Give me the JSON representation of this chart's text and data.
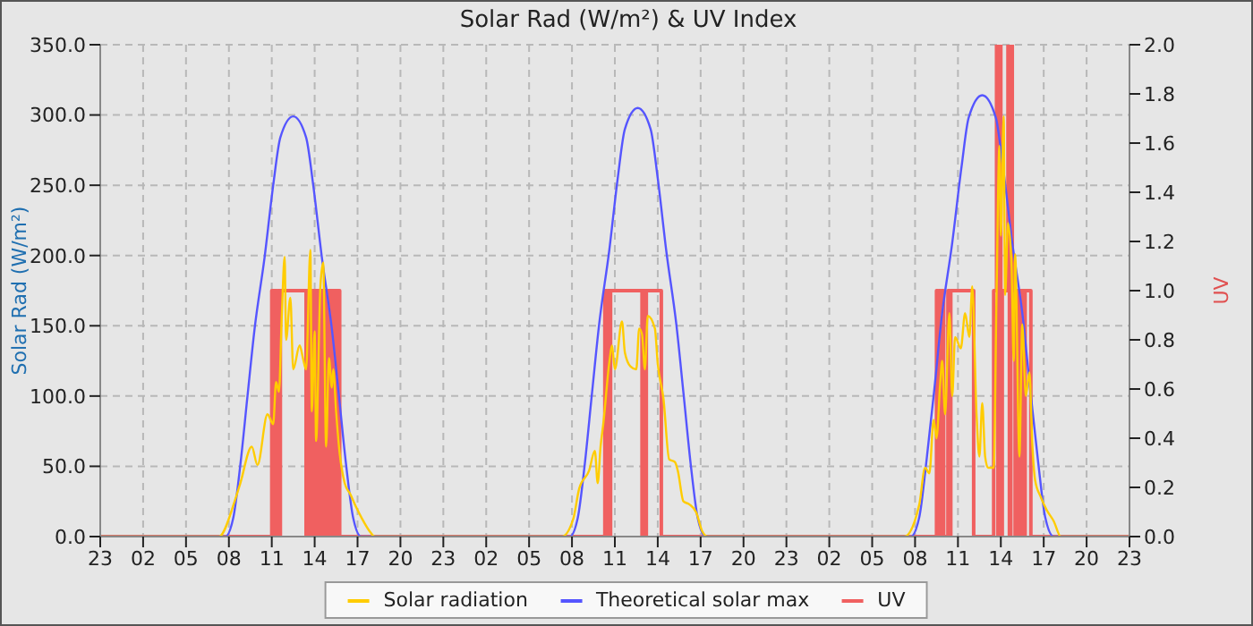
{
  "chart_data": {
    "type": "line",
    "title": "Solar Rad (W/m²) &  UV Index",
    "ylabel": "Solar Rad (W/m²)",
    "y2label": "UV",
    "xlim": [
      "--01-01T23:00",
      "--01-04T23:00"
    ],
    "xticks": [
      {
        "value": "--01-01T23:00",
        "label": "23"
      },
      {
        "value": "--01-02T02:00",
        "label": "02"
      },
      {
        "value": "--01-02T05:00",
        "label": "05"
      },
      {
        "value": "--01-02T08:00",
        "label": "08"
      },
      {
        "value": "--01-02T11:00",
        "label": "11"
      },
      {
        "value": "--01-02T14:00",
        "label": "14"
      },
      {
        "value": "--01-02T17:00",
        "label": "17"
      },
      {
        "value": "--01-02T20:00",
        "label": "20"
      },
      {
        "value": "--01-02T23:00",
        "label": "23"
      },
      {
        "value": "--01-03T02:00",
        "label": "02"
      },
      {
        "value": "--01-03T05:00",
        "label": "05"
      },
      {
        "value": "--01-03T08:00",
        "label": "08"
      },
      {
        "value": "--01-03T11:00",
        "label": "11"
      },
      {
        "value": "--01-03T14:00",
        "label": "14"
      },
      {
        "value": "--01-03T17:00",
        "label": "17"
      },
      {
        "value": "--01-03T20:00",
        "label": "20"
      },
      {
        "value": "--01-03T23:00",
        "label": "23"
      },
      {
        "value": "--01-04T02:00",
        "label": "02"
      },
      {
        "value": "--01-04T05:00",
        "label": "05"
      },
      {
        "value": "--01-04T08:00",
        "label": "08"
      },
      {
        "value": "--01-04T11:00",
        "label": "11"
      },
      {
        "value": "--01-04T14:00",
        "label": "14"
      },
      {
        "value": "--01-04T17:00",
        "label": "17"
      },
      {
        "value": "--01-04T20:00",
        "label": "20"
      },
      {
        "value": "--01-04T23:00",
        "label": "23"
      }
    ],
    "ylim": [
      0,
      350
    ],
    "yticks": [
      {
        "value": 0,
        "label": "0.0"
      },
      {
        "value": 50,
        "label": "50.0"
      },
      {
        "value": 100,
        "label": "100.0"
      },
      {
        "value": 150,
        "label": "150.0"
      },
      {
        "value": 200,
        "label": "200.0"
      },
      {
        "value": 250,
        "label": "250.0"
      },
      {
        "value": 300,
        "label": "300.0"
      },
      {
        "value": 350,
        "label": "350.0"
      }
    ],
    "y2lim": [
      0,
      2
    ],
    "y2ticks": [
      {
        "value": 0,
        "label": "0.0"
      },
      {
        "value": 0.2,
        "label": "0.2"
      },
      {
        "value": 0.4,
        "label": "0.4"
      },
      {
        "value": 0.6,
        "label": "0.6"
      },
      {
        "value": 0.8,
        "label": "0.8"
      },
      {
        "value": 1,
        "label": "1.0"
      },
      {
        "value": 1.2,
        "label": "1.2"
      },
      {
        "value": 1.4,
        "label": "1.4"
      },
      {
        "value": 1.6,
        "label": "1.6"
      },
      {
        "value": 1.8,
        "label": "1.8"
      },
      {
        "value": 2,
        "label": "2.0"
      }
    ],
    "grid": true,
    "legend": "bottom",
    "series": [
      {
        "name": "Solar radiation",
        "color": "#ffcc00",
        "x": [
          "--01-01T23:00",
          "--01-02T07:18",
          "--01-02T08:24",
          "--01-02T08:48",
          "--01-02T09:36",
          "--01-02T10:00",
          "--01-02T10:42",
          "--01-02T11:06",
          "--01-02T11:18",
          "--01-02T11:30",
          "--01-02T11:42",
          "--01-02T11:54",
          "--01-02T12:00",
          "--01-02T12:18",
          "--01-02T12:30",
          "--01-02T12:57",
          "--01-02T13:12",
          "--01-02T13:24",
          "--01-02T13:42",
          "--01-02T13:48",
          "--01-02T14:00",
          "--01-02T14:06",
          "--01-02T14:24",
          "--01-02T14:36",
          "--01-02T14:48",
          "--01-02T15:00",
          "--01-02T15:12",
          "--01-02T15:18",
          "--01-02T15:30",
          "--01-02T15:42",
          "--01-02T16:06",
          "--01-02T16:30",
          "--01-02T16:54",
          "--01-02T17:18",
          "--01-02T17:54",
          "--01-02T18:12",
          "--01-03T07:18",
          "--01-03T08:06",
          "--01-03T08:30",
          "--01-03T09:12",
          "--01-03T09:36",
          "--01-03T09:48",
          "--01-03T10:00",
          "--01-03T10:12",
          "--01-03T10:36",
          "--01-03T10:48",
          "--01-03T11:00",
          "--01-03T11:30",
          "--01-03T11:42",
          "--01-03T12:06",
          "--01-03T12:30",
          "--01-03T12:42",
          "--01-03T12:54",
          "--01-03T13:06",
          "--01-03T13:18",
          "--01-03T13:48",
          "--01-03T14:00",
          "--01-03T14:24",
          "--01-03T14:48",
          "--01-03T15:12",
          "--01-03T15:24",
          "--01-03T15:48",
          "--01-03T16:12",
          "--01-03T16:42",
          "--01-03T17:06",
          "--01-03T17:30",
          "--01-04T07:15",
          "--01-04T08:18",
          "--01-04T08:42",
          "--01-04T09:00",
          "--01-04T09:18",
          "--01-04T09:30",
          "--01-04T09:45",
          "--01-04T09:54",
          "--01-04T10:06",
          "--01-04T10:24",
          "--01-04T10:36",
          "--01-04T10:48",
          "--01-04T11:12",
          "--01-04T11:30",
          "--01-04T11:48",
          "--01-04T12:00",
          "--01-04T12:18",
          "--01-04T12:30",
          "--01-04T12:42",
          "--01-04T12:54",
          "--01-04T13:06",
          "--01-04T13:30",
          "--01-04T13:42",
          "--01-04T13:54",
          "--01-04T14:00",
          "--01-04T14:12",
          "--01-04T14:18",
          "--01-04T14:30",
          "--01-04T14:45",
          "--01-04T14:54",
          "--01-04T15:00",
          "--01-04T15:18",
          "--01-04T15:30",
          "--01-04T15:45",
          "--01-04T16:00",
          "--01-04T16:12",
          "--01-04T16:24",
          "--01-04T16:48",
          "--01-04T17:12",
          "--01-04T17:42",
          "--01-04T18:12",
          "--01-04T23:00"
        ],
        "values": [
          0,
          0,
          25,
          38,
          64,
          51,
          87,
          80,
          110,
          103,
          157,
          199,
          140,
          170,
          119,
          136,
          126,
          119,
          204,
          89,
          146,
          68,
          178,
          195,
          64,
          127,
          106,
          119,
          89,
          64,
          38,
          30,
          21,
          13,
          3,
          0,
          0,
          13,
          34,
          47,
          61,
          38,
          64,
          81,
          123,
          136,
          119,
          153,
          131,
          121,
          119,
          148,
          144,
          119,
          157,
          148,
          123,
          98,
          55,
          53,
          47,
          25,
          23,
          17,
          4,
          0,
          0,
          23,
          49,
          45,
          83,
          70,
          108,
          125,
          87,
          159,
          100,
          142,
          134,
          159,
          142,
          178,
          87,
          57,
          95,
          57,
          49,
          49,
          172,
          278,
          214,
          299,
          172,
          223,
          193,
          125,
          201,
          57,
          151,
          100,
          117,
          66,
          40,
          28,
          19,
          11,
          0,
          0
        ]
      },
      {
        "name": "Theoretical solar max",
        "color": "#5555ff",
        "x": [
          "--01-01T23:00",
          "--01-02T07:45",
          "--01-02T08:18",
          "--01-02T08:48",
          "--01-02T09:18",
          "--01-02T09:48",
          "--01-02T10:30",
          "--01-02T11:06",
          "--01-02T11:36",
          "--01-02T12:30",
          "--01-02T13:24",
          "--01-02T13:54",
          "--01-02T14:30",
          "--01-02T15:12",
          "--01-02T15:42",
          "--01-02T16:12",
          "--01-02T16:42",
          "--01-02T17:15",
          "--01-03T07:51",
          "--01-03T08:24",
          "--01-03T08:54",
          "--01-03T09:24",
          "--01-03T09:54",
          "--01-03T10:36",
          "--01-03T11:12",
          "--01-03T11:42",
          "--01-03T12:36",
          "--01-03T13:30",
          "--01-03T14:00",
          "--01-03T14:36",
          "--01-03T15:18",
          "--01-03T15:48",
          "--01-03T16:18",
          "--01-03T16:48",
          "--01-03T17:21",
          "--01-04T07:42",
          "--01-04T08:18",
          "--01-04T08:48",
          "--01-04T09:21",
          "--01-04T09:51",
          "--01-04T10:36",
          "--01-04T11:15",
          "--01-04T11:45",
          "--01-04T12:42",
          "--01-04T13:39",
          "--01-04T14:09",
          "--01-04T14:48",
          "--01-04T15:33",
          "--01-04T16:03",
          "--01-04T16:36",
          "--01-04T17:06",
          "--01-04T17:42",
          "--01-04T23:00"
        ],
        "values": [
          0,
          0,
          13,
          51,
          100,
          148,
          199,
          250,
          284,
          299,
          284,
          250,
          199,
          148,
          100,
          51,
          13,
          0,
          0,
          13,
          52,
          102,
          151,
          203,
          255,
          290,
          305,
          290,
          255,
          203,
          151,
          102,
          52,
          13,
          0,
          0,
          14,
          54,
          105,
          155,
          209,
          263,
          298,
          314,
          298,
          263,
          209,
          155,
          105,
          54,
          14,
          0,
          0
        ]
      },
      {
        "name": "UV",
        "type": "step",
        "axis": "y2",
        "color": "#f06060",
        "x": [
          "--01-01T23:00",
          "--01-02T11:00",
          "--01-02T11:06",
          "--01-02T11:12",
          "--01-02T11:18",
          "--01-02T11:24",
          "--01-02T11:30",
          "--01-02T11:36",
          "--01-02T13:24",
          "--01-02T13:30",
          "--01-02T13:36",
          "--01-02T13:42",
          "--01-02T13:48",
          "--01-02T13:54",
          "--01-02T14:00",
          "--01-02T14:06",
          "--01-02T14:18",
          "--01-02T14:24",
          "--01-02T14:30",
          "--01-02T14:36",
          "--01-02T14:42",
          "--01-02T14:48",
          "--01-02T14:54",
          "--01-02T15:00",
          "--01-02T15:06",
          "--01-02T15:12",
          "--01-02T15:18",
          "--01-02T15:24",
          "--01-02T15:30",
          "--01-02T15:36",
          "--01-02T15:45",
          "--01-03T10:18",
          "--01-03T10:24",
          "--01-03T10:30",
          "--01-03T10:36",
          "--01-03T10:42",
          "--01-03T12:54",
          "--01-03T13:00",
          "--01-03T13:06",
          "--01-03T13:12",
          "--01-03T14:15",
          "--01-04T09:30",
          "--01-04T09:36",
          "--01-04T09:42",
          "--01-04T09:48",
          "--01-04T09:54",
          "--01-04T10:00",
          "--01-04T10:18",
          "--01-04T10:24",
          "--01-04T10:30",
          "--01-04T12:06",
          "--01-04T13:30",
          "--01-04T13:42",
          "--01-04T13:48",
          "--01-04T13:54",
          "--01-04T14:00",
          "--01-04T14:06",
          "--01-04T14:30",
          "--01-04T14:36",
          "--01-04T14:42",
          "--01-04T14:48",
          "--01-04T15:00",
          "--01-04T15:06",
          "--01-04T15:12",
          "--01-04T15:18",
          "--01-04T15:24",
          "--01-04T15:30",
          "--01-04T15:36",
          "--01-04T15:42",
          "--01-04T16:06",
          "--01-04T23:00"
        ],
        "values": [
          0,
          1,
          0,
          1,
          0,
          1,
          0,
          1,
          0,
          1,
          0,
          1,
          0,
          1,
          0,
          1,
          0,
          1,
          0,
          1,
          0,
          1,
          0,
          1,
          0,
          1,
          0,
          1,
          0,
          1,
          0,
          1,
          0,
          1,
          0,
          1,
          0,
          1,
          0,
          1,
          0,
          1,
          0,
          1,
          0,
          1,
          0,
          1,
          0,
          1,
          0,
          1,
          2,
          0,
          2,
          0,
          1,
          2,
          0,
          2,
          1,
          0,
          1,
          0,
          1,
          0,
          1,
          0,
          1,
          0,
          0
        ]
      }
    ]
  }
}
